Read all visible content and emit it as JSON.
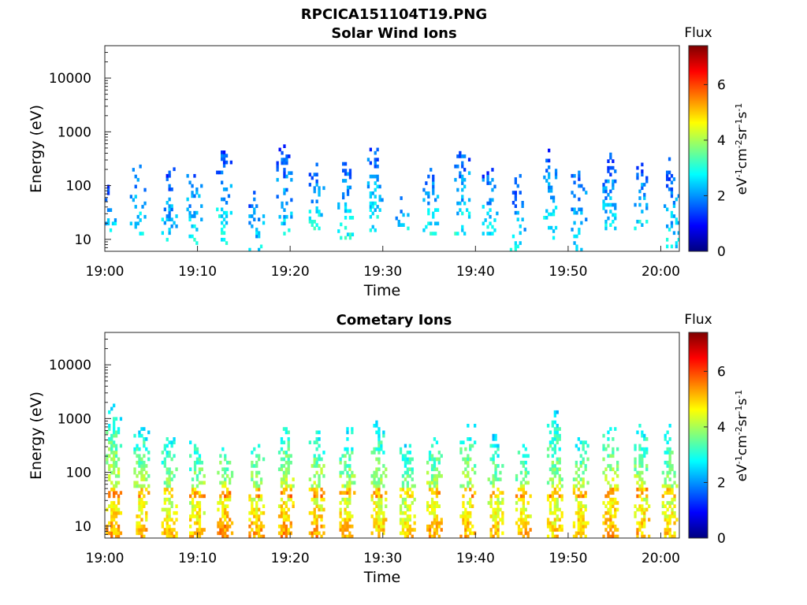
{
  "figure": {
    "title": "RPCICA151104T19.PNG"
  },
  "colormap": {
    "name": "jet",
    "stops": [
      "#00007f",
      "#0000ff",
      "#007fff",
      "#00ffff",
      "#7fff7f",
      "#ffff00",
      "#ff7f00",
      "#ff0000",
      "#7f0000"
    ]
  },
  "chart_data": [
    {
      "type": "heatmap",
      "title": "Solar Wind Ions",
      "xlabel": "Time",
      "ylabel": "Energy (eV)",
      "x_tick_labels": [
        "19:00",
        "19:10",
        "19:20",
        "19:30",
        "19:40",
        "19:50",
        "20:00"
      ],
      "x_range_minutes": [
        0,
        62
      ],
      "y_scale": "log",
      "y_tick_labels": [
        "10",
        "100",
        "1000",
        "10000"
      ],
      "y_range": [
        6,
        40000
      ],
      "colorbar": {
        "title": "Flux",
        "label": "eV-1cm-2sr-1s-1",
        "range": [
          0,
          7.4
        ],
        "ticks": [
          "0",
          "2",
          "4",
          "6"
        ]
      },
      "bursts": [
        {
          "t": 0.0,
          "emin": 12,
          "emax": 100,
          "level": 2.6
        },
        {
          "t": 3.2,
          "emin": 12,
          "emax": 250,
          "level": 2.8
        },
        {
          "t": 6.6,
          "emin": 8,
          "emax": 200,
          "level": 2.7
        },
        {
          "t": 9.3,
          "emin": 8,
          "emax": 220,
          "level": 2.8
        },
        {
          "t": 12.5,
          "emin": 8,
          "emax": 400,
          "level": 3.0
        },
        {
          "t": 16.0,
          "emin": 6,
          "emax": 100,
          "level": 2.6
        },
        {
          "t": 19.0,
          "emin": 12,
          "emax": 600,
          "level": 2.6
        },
        {
          "t": 22.5,
          "emin": 15,
          "emax": 250,
          "level": 2.8
        },
        {
          "t": 25.6,
          "emin": 10,
          "emax": 260,
          "level": 3.0
        },
        {
          "t": 28.8,
          "emin": 12,
          "emax": 480,
          "level": 2.9
        },
        {
          "t": 31.6,
          "emin": 15,
          "emax": 60,
          "level": 2.6
        },
        {
          "t": 34.8,
          "emin": 12,
          "emax": 220,
          "level": 2.9
        },
        {
          "t": 38.2,
          "emin": 12,
          "emax": 600,
          "level": 2.8
        },
        {
          "t": 41.2,
          "emin": 12,
          "emax": 200,
          "level": 2.7
        },
        {
          "t": 44.2,
          "emin": 6,
          "emax": 180,
          "level": 2.6
        },
        {
          "t": 47.8,
          "emin": 10,
          "emax": 450,
          "level": 2.8
        },
        {
          "t": 50.8,
          "emin": 6,
          "emax": 250,
          "level": 2.7
        },
        {
          "t": 54.2,
          "emin": 15,
          "emax": 400,
          "level": 2.6
        },
        {
          "t": 57.6,
          "emin": 15,
          "emax": 260,
          "level": 2.8
        },
        {
          "t": 60.8,
          "emin": 6,
          "emax": 300,
          "level": 2.7
        }
      ]
    },
    {
      "type": "heatmap",
      "title": "Cometary Ions",
      "xlabel": "Time",
      "ylabel": "Energy (eV)",
      "x_tick_labels": [
        "19:00",
        "19:10",
        "19:20",
        "19:30",
        "19:40",
        "19:50",
        "20:00"
      ],
      "x_range_minutes": [
        0,
        62
      ],
      "y_scale": "log",
      "y_tick_labels": [
        "10",
        "100",
        "1000",
        "10000"
      ],
      "y_range": [
        6,
        40000
      ],
      "colorbar": {
        "title": "Flux",
        "label": "eV-1cm-2sr-1s-1",
        "range": [
          0,
          7.4
        ],
        "ticks": [
          "0",
          "2",
          "4",
          "6"
        ]
      },
      "bursts": [
        {
          "t": 0.6,
          "emin": 6,
          "emax": 1800,
          "level": 5.3
        },
        {
          "t": 3.6,
          "emin": 6,
          "emax": 700,
          "level": 5.2
        },
        {
          "t": 6.6,
          "emin": 6,
          "emax": 600,
          "level": 5.0
        },
        {
          "t": 9.6,
          "emin": 6,
          "emax": 450,
          "level": 5.2
        },
        {
          "t": 12.6,
          "emin": 6,
          "emax": 350,
          "level": 5.6
        },
        {
          "t": 16.0,
          "emin": 6,
          "emax": 350,
          "level": 5.4
        },
        {
          "t": 19.2,
          "emin": 6,
          "emax": 900,
          "level": 5.4
        },
        {
          "t": 22.5,
          "emin": 6,
          "emax": 600,
          "level": 5.4
        },
        {
          "t": 25.8,
          "emin": 6,
          "emax": 700,
          "level": 5.2
        },
        {
          "t": 29.2,
          "emin": 6,
          "emax": 1000,
          "level": 5.1
        },
        {
          "t": 32.3,
          "emin": 6,
          "emax": 400,
          "level": 5.0
        },
        {
          "t": 35.2,
          "emin": 6,
          "emax": 500,
          "level": 5.3
        },
        {
          "t": 38.8,
          "emin": 6,
          "emax": 900,
          "level": 5.2
        },
        {
          "t": 41.8,
          "emin": 6,
          "emax": 500,
          "level": 5.1
        },
        {
          "t": 44.8,
          "emin": 6,
          "emax": 350,
          "level": 5.3
        },
        {
          "t": 48.2,
          "emin": 6,
          "emax": 1400,
          "level": 5.0
        },
        {
          "t": 51.0,
          "emin": 6,
          "emax": 600,
          "level": 5.2
        },
        {
          "t": 54.2,
          "emin": 6,
          "emax": 700,
          "level": 5.5
        },
        {
          "t": 57.6,
          "emin": 6,
          "emax": 900,
          "level": 5.2
        },
        {
          "t": 60.6,
          "emin": 6,
          "emax": 1000,
          "level": 5.0
        }
      ]
    }
  ]
}
